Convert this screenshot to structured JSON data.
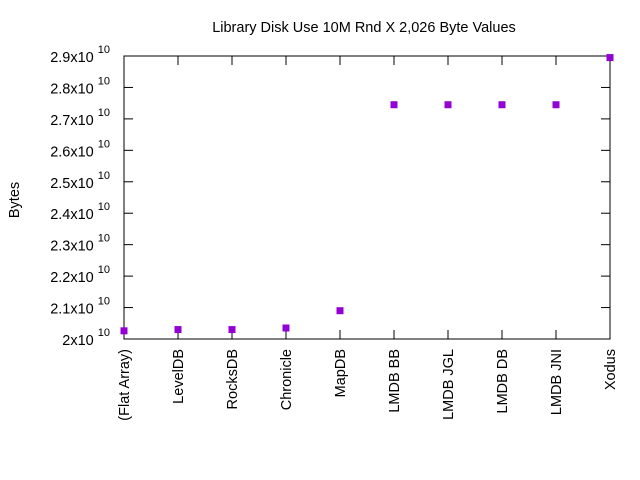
{
  "chart_data": {
    "type": "scatter",
    "title": "Library Disk Use 10M Rnd X 2,026 Byte Values",
    "xlabel": "",
    "ylabel": "Bytes",
    "categories": [
      "(Flat Array)",
      "LevelDB",
      "RocksDB",
      "Chronicle",
      "MapDB",
      "LMDB BB",
      "LMDB JGL",
      "LMDB DB",
      "LMDB JNI",
      "Xodus"
    ],
    "values": [
      20260000000,
      20300000000,
      20300000000,
      20350000000,
      20900000000,
      27450000000,
      27450000000,
      27450000000,
      27450000000,
      28950000000
    ],
    "ylim": [
      20000000000,
      29000000000
    ],
    "yticks": [
      {
        "value": 20000000000,
        "mantissa": "2x10",
        "exp": "10"
      },
      {
        "value": 21000000000,
        "mantissa": "2.1x10",
        "exp": "10"
      },
      {
        "value": 22000000000,
        "mantissa": "2.2x10",
        "exp": "10"
      },
      {
        "value": 23000000000,
        "mantissa": "2.3x10",
        "exp": "10"
      },
      {
        "value": 24000000000,
        "mantissa": "2.4x10",
        "exp": "10"
      },
      {
        "value": 25000000000,
        "mantissa": "2.5x10",
        "exp": "10"
      },
      {
        "value": 26000000000,
        "mantissa": "2.6x10",
        "exp": "10"
      },
      {
        "value": 27000000000,
        "mantissa": "2.7x10",
        "exp": "10"
      },
      {
        "value": 28000000000,
        "mantissa": "2.8x10",
        "exp": "10"
      },
      {
        "value": 29000000000,
        "mantissa": "2.9x10",
        "exp": "10"
      }
    ],
    "grid": false,
    "legend": "none",
    "marker": "square",
    "colors": {
      "point": "#9400d3",
      "axis": "#000000"
    }
  }
}
